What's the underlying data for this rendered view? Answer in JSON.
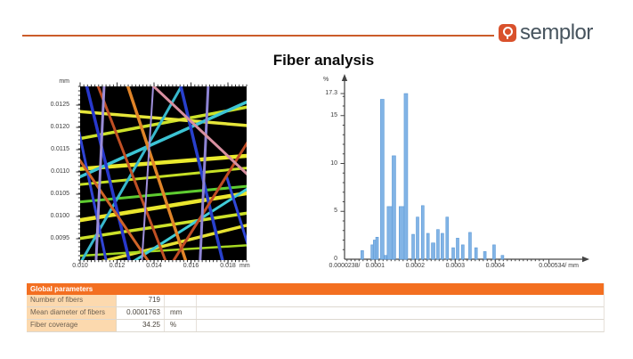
{
  "logo": {
    "text": "semplor",
    "badge_color": "#d9512c",
    "accent_color": "#cb5c2a"
  },
  "title": "Fiber analysis",
  "fiber_map": {
    "y_unit": "mm",
    "x_unit": "mm",
    "y_tick_labels": [
      "0.0125",
      "0.0120",
      "0.0115",
      "0.0110",
      "0.0105",
      "0.0100",
      "0.0095"
    ],
    "x_tick_labels": [
      "0.010",
      "0.012",
      "0.014",
      "0.016",
      "0.018"
    ],
    "background": "#000000",
    "fibers": [
      [
        0.0,
        0.3,
        1.0,
        0.12,
        "#cde22a",
        3.5
      ],
      [
        0.0,
        0.145,
        1.0,
        0.225,
        "#e6e63a",
        3.5
      ],
      [
        0.0,
        0.475,
        1.0,
        0.4,
        "#eaea2e",
        4.5
      ],
      [
        0.0,
        0.565,
        1.0,
        0.47,
        "#c6e026",
        3
      ],
      [
        0.0,
        0.77,
        1.0,
        0.615,
        "#eae62e",
        4.5
      ],
      [
        0.0,
        0.875,
        1.0,
        0.73,
        "#cde22a",
        3.5
      ],
      [
        0.08,
        1.02,
        1.0,
        0.8,
        "#e6e232",
        3.5
      ],
      [
        0.0,
        0.975,
        1.0,
        0.915,
        "#a6d822",
        2.5
      ],
      [
        0.0,
        0.665,
        1.0,
        0.575,
        "#5ecc30",
        3
      ],
      [
        0.0,
        0.52,
        1.0,
        0.09,
        "#3cc4d4",
        3.5
      ],
      [
        0.0,
        1.02,
        0.62,
        -0.02,
        "#38b8cc",
        3
      ],
      [
        0.3,
        1.02,
        1.02,
        0.58,
        "#40ccd8",
        3
      ],
      [
        0.035,
        -0.02,
        0.3,
        1.02,
        "#2838cc",
        3.5
      ],
      [
        -0.02,
        0.2,
        0.16,
        1.02,
        "#3044d4",
        3
      ],
      [
        0.6,
        -0.02,
        0.86,
        1.02,
        "#2840cc",
        3.5
      ],
      [
        0.88,
        0.52,
        1.02,
        0.95,
        "#3048d8",
        3
      ],
      [
        0.28,
        -0.02,
        0.64,
        1.02,
        "#e08428",
        3.5
      ],
      [
        0.1,
        -0.02,
        0.52,
        1.02,
        "#c05024",
        3
      ],
      [
        -0.02,
        0.4,
        0.42,
        1.02,
        "#d06428",
        3
      ],
      [
        0.55,
        1.02,
        1.02,
        0.3,
        "#c04c24",
        3
      ],
      [
        0.145,
        -0.02,
        0.095,
        1.02,
        "#9a8cd8",
        3
      ],
      [
        0.77,
        -0.02,
        0.72,
        1.02,
        "#8e84d4",
        3
      ],
      [
        0.44,
        -0.02,
        0.37,
        1.02,
        "#a090dc",
        2
      ],
      [
        0.42,
        -0.02,
        1.02,
        0.52,
        "#d890a0",
        3
      ]
    ]
  },
  "chart_data": {
    "type": "bar",
    "ylabel": "%",
    "xlabel": "mm",
    "ylim": [
      0,
      18.6
    ],
    "x_range_mm": [
      2.38e-05,
      0.000534
    ],
    "y_tick_values": [
      0,
      5,
      10,
      15
    ],
    "y_max_tick": 17.3,
    "x_tick_values": [
      0.0001,
      0.0002,
      0.0003,
      0.0004
    ],
    "x_tick_labels": [
      "0.0001",
      "0.0002",
      "0.0003",
      "0.0004"
    ],
    "x_min_label": "0.0000238/",
    "x_max_label": "0.000534/ mm",
    "bar_color": "#82b4e6",
    "bar_border": "#5c99d6",
    "bars_format": "[diameter_mm, percent, bar_width_px]",
    "bars": [
      [
        6.8e-05,
        0.9,
        3
      ],
      [
        9.3e-05,
        1.5,
        3
      ],
      [
        9.9e-05,
        2.0,
        3
      ],
      [
        0.000105,
        2.3,
        3
      ],
      [
        0.000118,
        16.7,
        4
      ],
      [
        0.000126,
        0.4,
        3
      ],
      [
        0.000139,
        5.5,
        8
      ],
      [
        0.000147,
        10.8,
        4
      ],
      [
        0.00017,
        5.5,
        9
      ],
      [
        0.000177,
        17.3,
        4
      ],
      [
        0.000195,
        2.6,
        3
      ],
      [
        0.000206,
        4.4,
        3
      ],
      [
        0.000219,
        5.6,
        3
      ],
      [
        0.000232,
        2.7,
        3
      ],
      [
        0.000245,
        1.7,
        4
      ],
      [
        0.000257,
        3.1,
        3
      ],
      [
        0.000268,
        2.7,
        3
      ],
      [
        0.00028,
        4.4,
        3
      ],
      [
        0.000295,
        1.2,
        3
      ],
      [
        0.000306,
        2.2,
        3
      ],
      [
        0.000319,
        1.5,
        3
      ],
      [
        0.000337,
        2.8,
        3
      ],
      [
        0.000352,
        1.2,
        3
      ],
      [
        0.000374,
        0.8,
        3
      ],
      [
        0.000397,
        1.5,
        3
      ],
      [
        0.000418,
        0.4,
        3
      ]
    ]
  },
  "table": {
    "header": "Global parameters",
    "rows": [
      {
        "label": "Number of fibers",
        "value": "719",
        "unit": ""
      },
      {
        "label": "Mean diameter of fibers",
        "value": "0.0001763",
        "unit": "mm"
      },
      {
        "label": "Fiber coverage",
        "value": "34.25",
        "unit": "%"
      }
    ]
  }
}
